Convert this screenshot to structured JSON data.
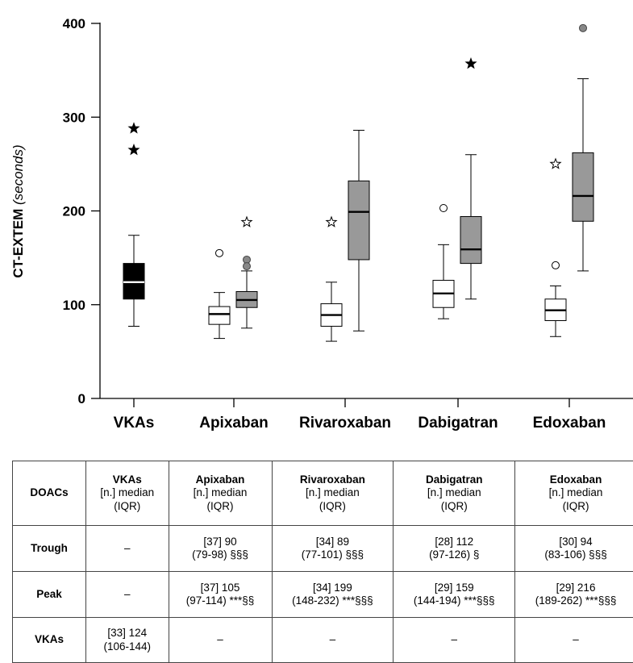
{
  "chart_data": {
    "type": "box",
    "ylabel_main": "CT-EXTEM",
    "ylabel_unit": "(seconds)",
    "ylim": [
      0,
      400
    ],
    "yticks": [
      "0",
      "100",
      "200",
      "300",
      "400"
    ],
    "categories": [
      "VKAs",
      "Apixaban",
      "Rivaroxaban",
      "Dabigatran",
      "Edoxaban"
    ],
    "boxes": [
      {
        "group": "VKAs",
        "kind": "black",
        "fill": "#000000",
        "whisker_low": 77,
        "q1": 106,
        "median": 124,
        "q3": 144,
        "whisker_high": 174,
        "outliers": [
          {
            "value": 288,
            "marker": "star-filled"
          },
          {
            "value": 265,
            "marker": "star-filled"
          }
        ]
      },
      {
        "group": "Apixaban",
        "kind": "trough",
        "fill": "#ffffff",
        "whisker_low": 64,
        "q1": 79,
        "median": 90,
        "q3": 98,
        "whisker_high": 113,
        "outliers": [
          {
            "value": 155,
            "marker": "circle-open"
          }
        ]
      },
      {
        "group": "Apixaban",
        "kind": "peak",
        "fill": "#999999",
        "whisker_low": 75,
        "q1": 97,
        "median": 105,
        "q3": 114,
        "whisker_high": 136,
        "outliers": [
          {
            "value": 188,
            "marker": "star-open"
          },
          {
            "value": 148,
            "marker": "circle-gray"
          },
          {
            "value": 141,
            "marker": "circle-gray"
          }
        ]
      },
      {
        "group": "Rivaroxaban",
        "kind": "trough",
        "fill": "#ffffff",
        "whisker_low": 61,
        "q1": 77,
        "median": 89,
        "q3": 101,
        "whisker_high": 124,
        "outliers": [
          {
            "value": 188,
            "marker": "star-open"
          }
        ]
      },
      {
        "group": "Rivaroxaban",
        "kind": "peak",
        "fill": "#999999",
        "whisker_low": 72,
        "q1": 148,
        "median": 199,
        "q3": 232,
        "whisker_high": 286,
        "outliers": []
      },
      {
        "group": "Dabigatran",
        "kind": "trough",
        "fill": "#ffffff",
        "whisker_low": 85,
        "q1": 97,
        "median": 112,
        "q3": 126,
        "whisker_high": 164,
        "outliers": [
          {
            "value": 203,
            "marker": "circle-open"
          }
        ]
      },
      {
        "group": "Dabigatran",
        "kind": "peak",
        "fill": "#999999",
        "whisker_low": 106,
        "q1": 144,
        "median": 159,
        "q3": 194,
        "whisker_high": 260,
        "outliers": [
          {
            "value": 357,
            "marker": "star-filled"
          }
        ]
      },
      {
        "group": "Edoxaban",
        "kind": "trough",
        "fill": "#ffffff",
        "whisker_low": 66,
        "q1": 83,
        "median": 94,
        "q3": 106,
        "whisker_high": 120,
        "outliers": [
          {
            "value": 250,
            "marker": "star-open"
          },
          {
            "value": 142,
            "marker": "circle-open"
          }
        ]
      },
      {
        "group": "Edoxaban",
        "kind": "peak",
        "fill": "#999999",
        "whisker_low": 136,
        "q1": 189,
        "median": 216,
        "q3": 262,
        "whisker_high": 341,
        "outliers": [
          {
            "value": 395,
            "marker": "circle-gray"
          }
        ]
      }
    ]
  },
  "table": {
    "header": {
      "label": "DOACs",
      "columns": [
        {
          "name": "VKAs",
          "sub1": "[n.] median",
          "sub2": "(IQR)"
        },
        {
          "name": "Apixaban",
          "sub1": "[n.] median",
          "sub2": "(IQR)"
        },
        {
          "name": "Rivaroxaban",
          "sub1": "[n.] median",
          "sub2": "(IQR)"
        },
        {
          "name": "Dabigatran",
          "sub1": "[n.] median",
          "sub2": "(IQR)"
        },
        {
          "name": "Edoxaban",
          "sub1": "[n.] median",
          "sub2": "(IQR)"
        }
      ]
    },
    "rows": [
      {
        "label": "Trough",
        "cells": [
          {
            "l1": "–",
            "l2": ""
          },
          {
            "l1": "[37] 90",
            "l2": "(79-98) §§§"
          },
          {
            "l1": "[34] 89",
            "l2": "(77-101) §§§"
          },
          {
            "l1": "[28] 112",
            "l2": "(97-126) §"
          },
          {
            "l1": "[30] 94",
            "l2": "(83-106) §§§"
          }
        ]
      },
      {
        "label": "Peak",
        "cells": [
          {
            "l1": "–",
            "l2": ""
          },
          {
            "l1": "[37] 105",
            "l2": "(97-114) ***§§"
          },
          {
            "l1": "[34] 199",
            "l2": "(148-232) ***§§§"
          },
          {
            "l1": "[29] 159",
            "l2": "(144-194) ***§§§"
          },
          {
            "l1": "[29] 216",
            "l2": "(189-262) ***§§§"
          }
        ]
      },
      {
        "label": "VKAs",
        "cells": [
          {
            "l1": "[33] 124",
            "l2": "(106-144)"
          },
          {
            "l1": "–",
            "l2": ""
          },
          {
            "l1": "–",
            "l2": ""
          },
          {
            "l1": "–",
            "l2": ""
          },
          {
            "l1": "–",
            "l2": ""
          }
        ]
      }
    ]
  }
}
